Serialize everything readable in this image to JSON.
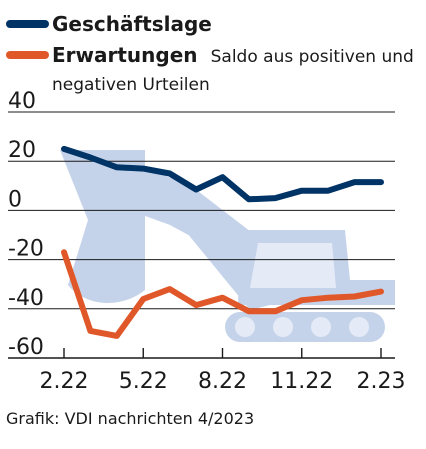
{
  "chart_data": {
    "type": "line",
    "title": "",
    "xlabel": "",
    "ylabel": "",
    "ylim": [
      -60,
      40
    ],
    "y_ticks": [
      40,
      20,
      0,
      -20,
      -40,
      -60
    ],
    "x_tick_labels": [
      "2.22",
      "5.22",
      "8.22",
      "11.22",
      "2.23"
    ],
    "x": [
      "2.22",
      "3.22",
      "4.22",
      "5.22",
      "6.22",
      "7.22",
      "8.22",
      "9.22",
      "10.22",
      "11.22",
      "12.22",
      "1.23",
      "2.23"
    ],
    "grid": "horizontal",
    "legend_position": "top-left",
    "series": [
      {
        "name": "Geschäftslage",
        "color": "#003366",
        "values": [
          25,
          21.5,
          17.5,
          17,
          15,
          8.5,
          13.5,
          4.5,
          5,
          8,
          8,
          11.5,
          11.5
        ]
      },
      {
        "name": "Erwartungen",
        "color": "#e0582a",
        "values": [
          -17,
          -49,
          -51,
          -36,
          -32,
          -38.5,
          -35.5,
          -41,
          -41,
          -36.5,
          -35.5,
          -35,
          -33
        ]
      }
    ],
    "legend_note": [
      "Saldo aus positiven und",
      "negativen Urteilen"
    ]
  },
  "colors": {
    "background_graphic": "#c5d3ea",
    "background_graphic_highlight": "#e4ebf6",
    "grid": "#1a1a1a"
  },
  "background_graphic_icon": "excavator-icon",
  "credit": "Grafik: VDI nachrichten 4/2023"
}
